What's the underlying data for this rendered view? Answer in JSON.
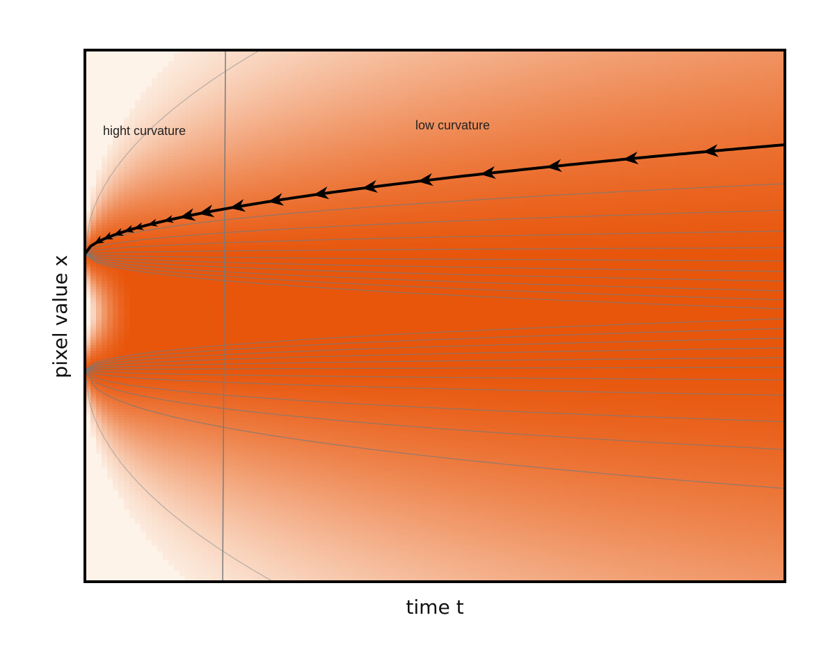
{
  "diagram": {
    "xlabel": "time t",
    "ylabel": "pixel value x",
    "annotations": {
      "high_curvature": "hight curvature",
      "low_curvature": "low curvature"
    },
    "colors": {
      "background": "#fdf3e9",
      "density_peak": "#e8560c",
      "trajectory": "#000000",
      "flow_lines": "#7a7a7a",
      "frame": "#000000"
    }
  }
}
